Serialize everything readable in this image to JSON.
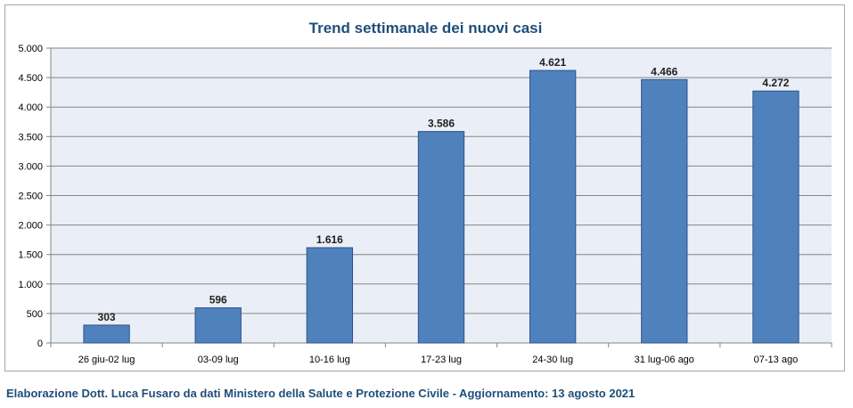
{
  "chart_data": {
    "type": "bar",
    "title": "Trend settimanale dei nuovi casi",
    "categories": [
      "26 giu-02 lug",
      "03-09 lug",
      "10-16 lug",
      "17-23 lug",
      "24-30 lug",
      "31 lug-06 ago",
      "07-13 ago"
    ],
    "values": [
      303,
      596,
      1616,
      3586,
      4621,
      4466,
      4272
    ],
    "value_labels": [
      "303",
      "596",
      "1.616",
      "3.586",
      "4.621",
      "4.466",
      "4.272"
    ],
    "ylim": [
      0,
      5000
    ],
    "yticks": [
      0,
      500,
      1000,
      1500,
      2000,
      2500,
      3000,
      3500,
      4000,
      4500,
      5000
    ],
    "ytick_labels": [
      "0",
      "500",
      "1.000",
      "1.500",
      "2.000",
      "2.500",
      "3.000",
      "3.500",
      "4.000",
      "4.500",
      "5.000"
    ],
    "grid": true,
    "legend": "none",
    "colors": {
      "bar": "#4f81bd",
      "bar_border": "#2f528f",
      "plot_bg": "#eaeef6",
      "grid": "#868686",
      "title": "#1f4e79"
    }
  },
  "footer": {
    "text": "Elaborazione Dott. Luca Fusaro da dati Ministero della Salute e Protezione Civile - Aggiornamento: 13 agosto 2021"
  }
}
